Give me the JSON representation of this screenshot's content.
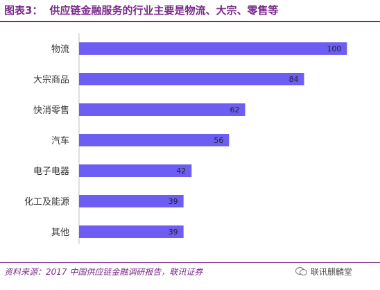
{
  "header": {
    "figure_number": "图表3：",
    "title": "供应链金融服务的行业主要是物流、大宗、零售等"
  },
  "chart_data": {
    "type": "bar",
    "orientation": "horizontal",
    "title": "供应链金融服务的行业主要是物流、大宗、零售等",
    "categories": [
      "物流",
      "大宗商品",
      "快消零售",
      "汽车",
      "电子电器",
      "化工及能源",
      "其他"
    ],
    "values": [
      100,
      84,
      62,
      56,
      42,
      39,
      39
    ],
    "xlim": [
      0,
      110
    ],
    "bar_color": "#6d5df2",
    "data_labels": true,
    "grid": false,
    "legend": "none"
  },
  "footer": {
    "source": "资料来源：2017 中国供应链金融调研报告，联讯证券",
    "watermark": "联讯麒麟堂",
    "watermark_icon": "wechat-icon"
  },
  "colors": {
    "accent": "#7a2a8a",
    "bar": "#6d5df2",
    "label": "#333333"
  }
}
